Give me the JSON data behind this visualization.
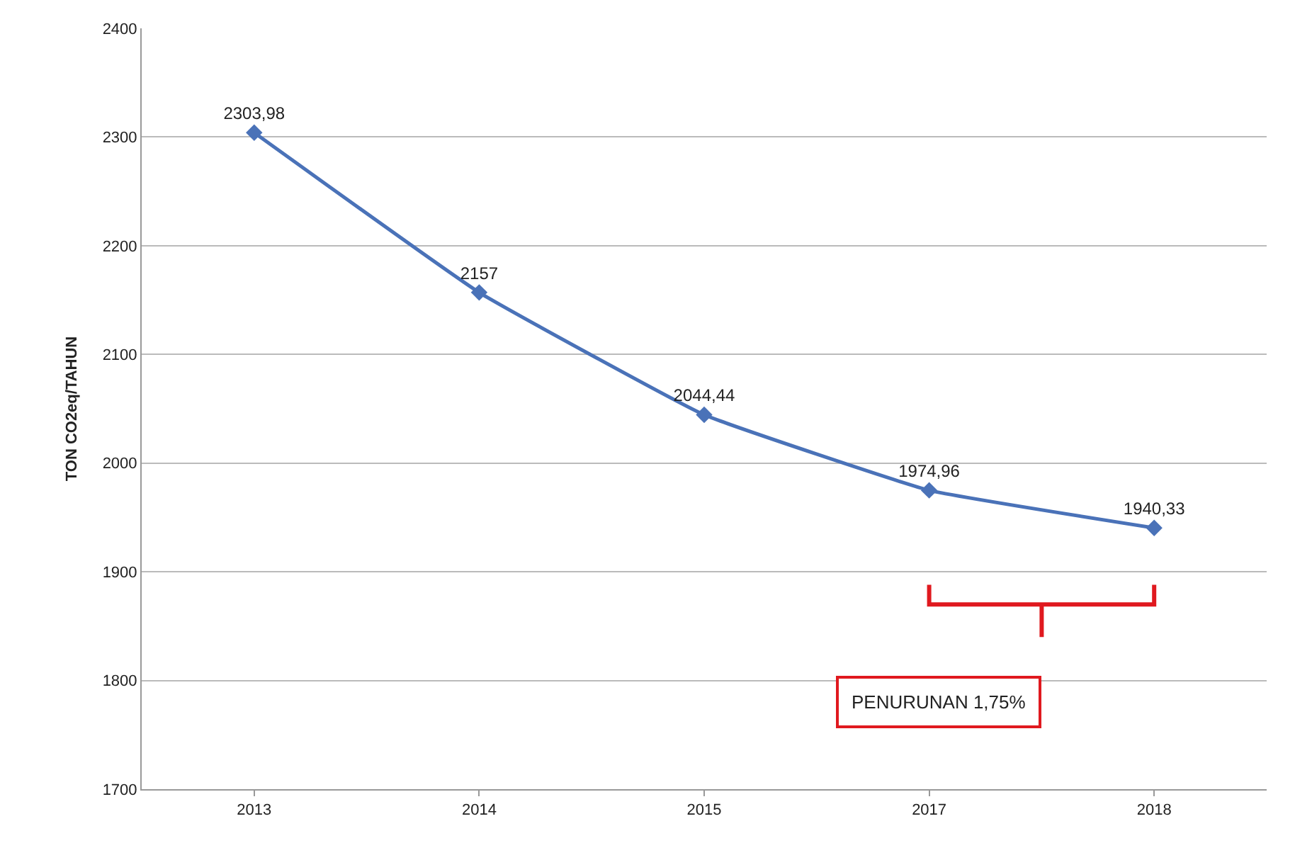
{
  "chart_data": {
    "type": "line",
    "ylabel": "TON CO2eq/TAHUN",
    "categories": [
      "2013",
      "2014",
      "2015",
      "2017",
      "2018"
    ],
    "series": [
      {
        "color": "#4a72b8",
        "values": [
          2303.98,
          2157,
          2044.44,
          1974.96,
          1940.33
        ],
        "value_labels": [
          "2303,98",
          "2157",
          "2044,44",
          "1974,96",
          "1940,33"
        ]
      }
    ],
    "ylim": [
      1700,
      2400
    ],
    "yticks": [
      1700,
      1800,
      1900,
      2000,
      2100,
      2200,
      2300,
      2400
    ],
    "grid": "y",
    "marker": "diamond",
    "line_style": "solid",
    "annotations": [
      "PENURUNAN 1,75%"
    ]
  }
}
